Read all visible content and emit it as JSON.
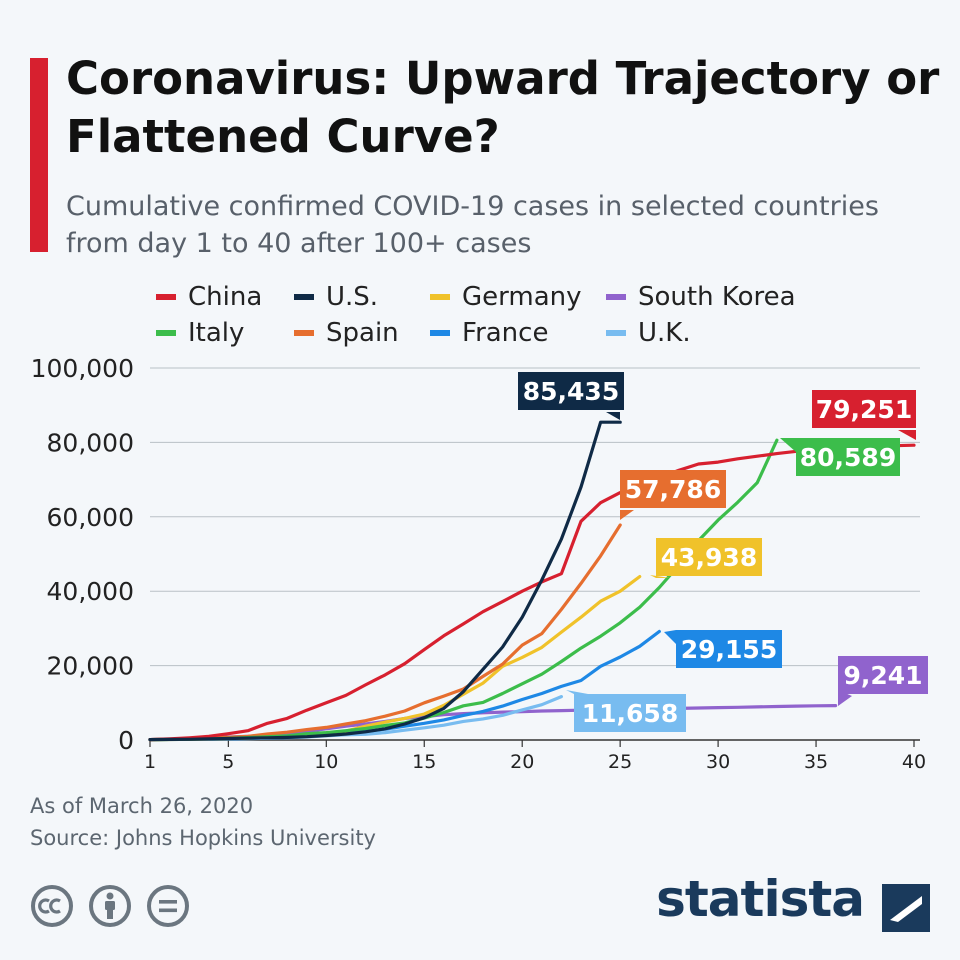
{
  "title": "Coronavirus: Upward Trajectory or Flattened Curve?",
  "subtitle": "Cumulative confirmed COVID-19 cases in selected countries from day 1 to 40 after 100+ cases",
  "footer": {
    "as_of": "As of March 26, 2020",
    "source": "Source: Johns Hopkins University"
  },
  "brand": {
    "name": "statista"
  },
  "license_icons": [
    "cc-icon",
    "attribution-icon",
    "no-derivatives-icon"
  ],
  "chart_data": {
    "type": "line",
    "title": "Coronavirus: Upward Trajectory or Flattened Curve?",
    "xlabel": "",
    "ylabel": "",
    "xlim": [
      1,
      40
    ],
    "ylim": [
      0,
      100000
    ],
    "xticks": [
      1,
      5,
      10,
      15,
      20,
      25,
      30,
      35,
      40
    ],
    "xtick_labels": [
      "1",
      "5",
      "10",
      "15",
      "20",
      "25",
      "30",
      "35",
      "40"
    ],
    "yticks": [
      0,
      20000,
      40000,
      60000,
      80000,
      100000
    ],
    "ytick_labels": [
      "0",
      "20,000",
      "40,000",
      "60,000",
      "80,000",
      "100,000"
    ],
    "grid": true,
    "series": [
      {
        "name": "China",
        "color": "#d7202f",
        "end_label": "79,251",
        "x": [
          1,
          2,
          3,
          4,
          5,
          6,
          7,
          8,
          9,
          10,
          11,
          12,
          13,
          14,
          15,
          16,
          17,
          18,
          19,
          20,
          21,
          22,
          23,
          24,
          25,
          26,
          27,
          28,
          29,
          30,
          31,
          32,
          33,
          34,
          35,
          36,
          37,
          38,
          39,
          40
        ],
        "y": [
          100,
          300,
          600,
          1000,
          1700,
          2500,
          4500,
          5800,
          8000,
          10000,
          12000,
          14800,
          17500,
          20500,
          24300,
          28000,
          31200,
          34500,
          37200,
          40000,
          42500,
          44700,
          58800,
          63800,
          66500,
          68500,
          70500,
          72500,
          74200,
          74700,
          75600,
          76300,
          77000,
          77600,
          78000,
          78500,
          78800,
          79000,
          79100,
          79251
        ]
      },
      {
        "name": "U.S.",
        "color": "#0f2a46",
        "end_label": "85,435",
        "x": [
          1,
          2,
          3,
          4,
          5,
          6,
          7,
          8,
          9,
          10,
          11,
          12,
          13,
          14,
          15,
          16,
          17,
          18,
          19,
          20,
          21,
          22,
          23,
          24,
          25
        ],
        "y": [
          100,
          150,
          200,
          300,
          400,
          500,
          600,
          700,
          900,
          1200,
          1600,
          2200,
          3000,
          4300,
          6000,
          8500,
          13000,
          19000,
          25000,
          33000,
          43000,
          54000,
          68000,
          85435,
          85435
        ]
      },
      {
        "name": "Germany",
        "color": "#f0c22a",
        "end_label": "43,938",
        "x": [
          1,
          2,
          3,
          4,
          5,
          6,
          7,
          8,
          9,
          10,
          11,
          12,
          13,
          14,
          15,
          16,
          17,
          18,
          19,
          20,
          21,
          22,
          23,
          24,
          25,
          26
        ],
        "y": [
          100,
          130,
          200,
          280,
          400,
          500,
          700,
          900,
          1200,
          1600,
          2400,
          3700,
          4800,
          5800,
          7000,
          9300,
          12300,
          15300,
          19800,
          22200,
          24900,
          29000,
          33000,
          37300,
          40000,
          43938
        ]
      },
      {
        "name": "South Korea",
        "color": "#9063cd",
        "end_label": "9,241",
        "x": [
          1,
          2,
          3,
          4,
          5,
          6,
          7,
          8,
          9,
          10,
          11,
          12,
          13,
          14,
          15,
          16,
          17,
          18,
          19,
          20,
          21,
          22,
          23,
          24,
          25,
          26,
          27,
          28,
          29,
          30,
          31,
          32,
          33,
          34,
          35,
          36
        ],
        "y": [
          100,
          200,
          350,
          600,
          800,
          1000,
          1300,
          1800,
          2300,
          3000,
          3700,
          4300,
          5000,
          5800,
          6300,
          6800,
          7100,
          7300,
          7500,
          7600,
          7800,
          7900,
          8000,
          8100,
          8200,
          8300,
          8400,
          8500,
          8600,
          8700,
          8800,
          8900,
          9000,
          9100,
          9200,
          9241
        ]
      },
      {
        "name": "Italy",
        "color": "#3cbd4b",
        "end_label": "80,589",
        "x": [
          1,
          2,
          3,
          4,
          5,
          6,
          7,
          8,
          9,
          10,
          11,
          12,
          13,
          14,
          15,
          16,
          17,
          18,
          19,
          20,
          21,
          22,
          23,
          24,
          25,
          26,
          27,
          28,
          29,
          30,
          31,
          32,
          33
        ],
        "y": [
          100,
          150,
          230,
          320,
          450,
          650,
          900,
          1100,
          1700,
          2000,
          2500,
          3100,
          3900,
          4600,
          5900,
          7400,
          9200,
          10100,
          12500,
          15100,
          17700,
          21100,
          24700,
          27900,
          31500,
          35700,
          41000,
          47000,
          53600,
          59100,
          63900,
          69200,
          80589
        ]
      },
      {
        "name": "Spain",
        "color": "#e66e2f",
        "end_label": "57,786",
        "x": [
          1,
          2,
          3,
          4,
          5,
          6,
          7,
          8,
          9,
          10,
          11,
          12,
          13,
          14,
          15,
          16,
          17,
          18,
          19,
          20,
          21,
          22,
          23,
          24,
          25
        ],
        "y": [
          100,
          200,
          300,
          500,
          700,
          1000,
          1600,
          2100,
          2800,
          3400,
          4300,
          5200,
          6400,
          7800,
          10000,
          11800,
          13700,
          17100,
          20400,
          25500,
          28600,
          35100,
          42100,
          49500,
          57786
        ]
      },
      {
        "name": "France",
        "color": "#1e88e5",
        "end_label": "29,155",
        "x": [
          1,
          2,
          3,
          4,
          5,
          6,
          7,
          8,
          9,
          10,
          11,
          12,
          13,
          14,
          15,
          16,
          17,
          18,
          19,
          20,
          21,
          22,
          23,
          24,
          25,
          26,
          27
        ],
        "y": [
          100,
          130,
          190,
          210,
          280,
          420,
          610,
          710,
          1000,
          1400,
          1800,
          2300,
          2900,
          3700,
          4500,
          5400,
          6600,
          7700,
          9100,
          10900,
          12500,
          14400,
          16000,
          19800,
          22300,
          25200,
          29155
        ]
      },
      {
        "name": "U.K.",
        "color": "#78bcf0",
        "end_label": "11,658",
        "x": [
          1,
          2,
          3,
          4,
          5,
          6,
          7,
          8,
          9,
          10,
          11,
          12,
          13,
          14,
          15,
          16,
          17,
          18,
          19,
          20,
          21,
          22
        ],
        "y": [
          100,
          160,
          200,
          270,
          320,
          380,
          460,
          590,
          800,
          1140,
          1400,
          1540,
          2000,
          2630,
          3270,
          3980,
          5000,
          5680,
          6650,
          8100,
          9500,
          11658
        ]
      }
    ]
  }
}
